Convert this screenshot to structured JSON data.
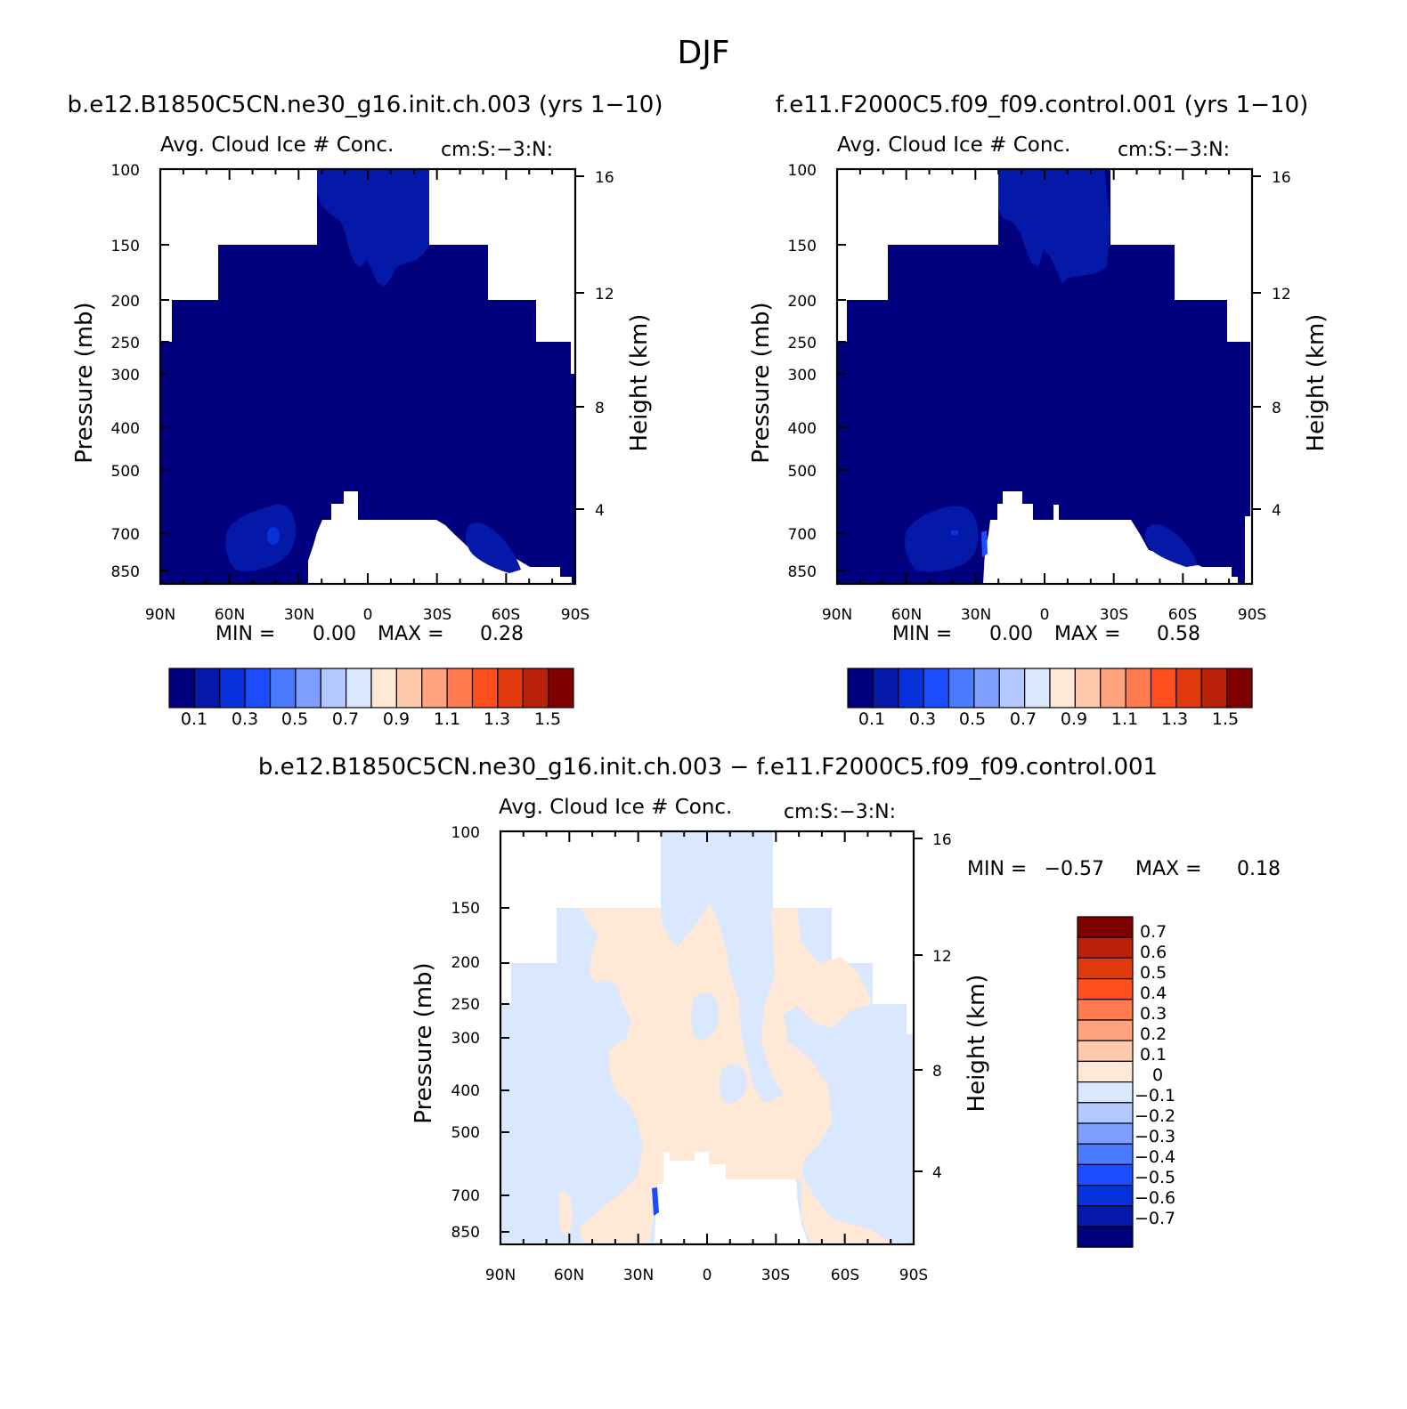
{
  "figure_title": "DJF",
  "chart_data": [
    {
      "type": "contour",
      "case_title": "b.e12.B1850C5CN.ne30_g16.init.ch.003 (yrs 1−10)",
      "plot_title": "Avg. Cloud Ice # Conc.",
      "units": "cm:S:−3:N:",
      "ylabel": "Pressure (mb)",
      "y2label": "Height (km)",
      "pressure_ticks": [
        "100",
        "150",
        "200",
        "250",
        "300",
        "400",
        "500",
        "700",
        "850"
      ],
      "pressure_values": [
        100,
        150,
        200,
        250,
        300,
        400,
        500,
        700,
        850
      ],
      "height_ticks": [
        "16",
        "12",
        "8",
        "4"
      ],
      "height_values": [
        16,
        12,
        8,
        4
      ],
      "lat_ticks": [
        "90N",
        "60N",
        "30N",
        "0",
        "30S",
        "60S",
        "90S"
      ],
      "lat_values": [
        90,
        60,
        30,
        0,
        -30,
        -60,
        -90
      ],
      "xlim": [
        90,
        -90
      ],
      "ylim": [
        1000,
        100
      ],
      "min_label": "MIN =",
      "min_value": "0.00",
      "max_label": "MAX =",
      "max_value": "0.28",
      "colorbar_labels": [
        "0.1",
        "0.3",
        "0.5",
        "0.7",
        "0.9",
        "1.1",
        "1.3",
        "1.5"
      ],
      "colorbar_colors": [
        "#00007f",
        "#0519a8",
        "#0732d9",
        "#1b4cff",
        "#4a7bff",
        "#7e9fff",
        "#b2c8ff",
        "#d9e8ff",
        "#ffe8d6",
        "#ffc9ad",
        "#ffa37f",
        "#ff7a4d",
        "#ff4f1f",
        "#e13a0f",
        "#b92108",
        "#7f0000"
      ]
    },
    {
      "type": "contour",
      "case_title": "f.e11.F2000C5.f09_f09.control.001 (yrs 1−10)",
      "plot_title": "Avg. Cloud Ice # Conc.",
      "units": "cm:S:−3:N:",
      "ylabel": "Pressure (mb)",
      "y2label": "Height (km)",
      "pressure_ticks": [
        "100",
        "150",
        "200",
        "250",
        "300",
        "400",
        "500",
        "700",
        "850"
      ],
      "height_ticks": [
        "16",
        "12",
        "8",
        "4"
      ],
      "lat_ticks": [
        "90N",
        "60N",
        "30N",
        "0",
        "30S",
        "60S",
        "90S"
      ],
      "xlim": [
        90,
        -90
      ],
      "ylim": [
        1000,
        100
      ],
      "min_label": "MIN =",
      "min_value": "0.00",
      "max_label": "MAX =",
      "max_value": "0.58",
      "colorbar_labels": [
        "0.1",
        "0.3",
        "0.5",
        "0.7",
        "0.9",
        "1.1",
        "1.3",
        "1.5"
      ],
      "colorbar_colors": [
        "#00007f",
        "#0519a8",
        "#0732d9",
        "#1b4cff",
        "#4a7bff",
        "#7e9fff",
        "#b2c8ff",
        "#d9e8ff",
        "#ffe8d6",
        "#ffc9ad",
        "#ffa37f",
        "#ff7a4d",
        "#ff4f1f",
        "#e13a0f",
        "#b92108",
        "#7f0000"
      ]
    },
    {
      "type": "contour",
      "case_title": "b.e12.B1850C5CN.ne30_g16.init.ch.003 − f.e11.F2000C5.f09_f09.control.001",
      "plot_title": "Avg. Cloud Ice # Conc.",
      "units": "cm:S:−3:N:",
      "ylabel": "Pressure (mb)",
      "y2label": "Height (km)",
      "pressure_ticks": [
        "100",
        "150",
        "200",
        "250",
        "300",
        "400",
        "500",
        "700",
        "850"
      ],
      "height_ticks": [
        "16",
        "12",
        "8",
        "4"
      ],
      "lat_ticks": [
        "90N",
        "60N",
        "30N",
        "0",
        "30S",
        "60S",
        "90S"
      ],
      "xlim": [
        90,
        -90
      ],
      "ylim": [
        1000,
        100
      ],
      "min_label": "MIN =",
      "min_value": "−0.57",
      "max_label": "MAX =",
      "max_value": "0.18",
      "colorbar_labels": [
        "0.7",
        "0.6",
        "0.5",
        "0.4",
        "0.3",
        "0.2",
        "0.1",
        "0",
        "−0.1",
        "−0.2",
        "−0.3",
        "−0.4",
        "−0.5",
        "−0.6",
        "−0.7"
      ],
      "colorbar_colors": [
        "#7f0000",
        "#b92108",
        "#e13a0f",
        "#ff4f1f",
        "#ff7a4d",
        "#ffa37f",
        "#ffc9ad",
        "#ffe8d6",
        "#d9e8ff",
        "#b2c8ff",
        "#7e9fff",
        "#4a7bff",
        "#1b4cff",
        "#0732d9",
        "#0519a8",
        "#00007f"
      ]
    }
  ]
}
